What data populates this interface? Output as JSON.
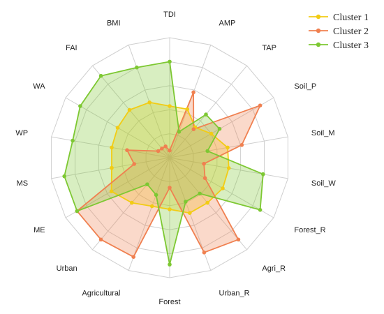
{
  "chart_data": {
    "type": "radar",
    "axes": [
      "TDI",
      "AMP",
      "TAP",
      "Soil_P",
      "Soil_M",
      "Soil_W",
      "Forest_R",
      "Agri_R",
      "Urban_R",
      "Forest",
      "Agricultural",
      "Urban",
      "ME",
      "MS",
      "WP",
      "WA",
      "FAI",
      "BMI"
    ],
    "range": [
      0,
      1
    ],
    "rings": 5,
    "grid": true,
    "legend_position": "top-right",
    "series": [
      {
        "name": "Cluster 1",
        "color": "#f2cc14",
        "values": [
          0.43,
          0.43,
          0.33,
          0.4,
          0.49,
          0.5,
          0.51,
          0.49,
          0.49,
          0.43,
          0.43,
          0.49,
          0.56,
          0.49,
          0.49,
          0.5,
          0.52,
          0.49
        ]
      },
      {
        "name": "Cluster 2",
        "color": "#f08050",
        "values": [
          0.06,
          0.58,
          0.31,
          0.87,
          0.61,
          0.29,
          0.34,
          0.89,
          0.84,
          0.25,
          0.88,
          0.89,
          0.89,
          0.3,
          0.36,
          0.11,
          0.1,
          0.1
        ]
      },
      {
        "name": "Cluster 3",
        "color": "#7dc832",
        "values": [
          0.8,
          0.23,
          0.47,
          0.48,
          0.32,
          0.79,
          0.87,
          0.39,
          0.39,
          0.89,
          0.33,
          0.29,
          0.89,
          0.89,
          0.82,
          0.86,
          0.89,
          0.8
        ]
      }
    ]
  }
}
